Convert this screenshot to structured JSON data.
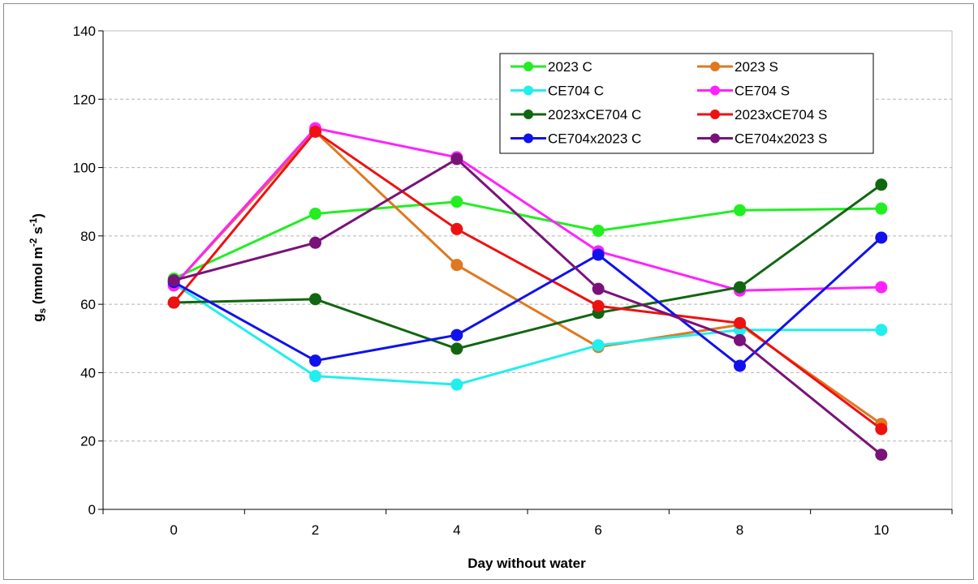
{
  "chart_data": {
    "type": "line",
    "title": "",
    "xlabel": "Day without water",
    "ylabel_main": "g",
    "ylabel_sub": "s",
    "ylabel_rest": " (mmol m",
    "ylabel_sup1": "-2",
    "ylabel_mid": " s",
    "ylabel_sup2": "-1",
    "ylabel_close": ")",
    "x": [
      0,
      2,
      4,
      6,
      8,
      10
    ],
    "x_tick_labels": [
      "0",
      "2",
      "4",
      "6",
      "8",
      "10"
    ],
    "xlim": [
      -1,
      11
    ],
    "ylim": [
      0,
      140
    ],
    "y_ticks": [
      0,
      20,
      40,
      60,
      80,
      100,
      120,
      140
    ],
    "y_tick_labels": [
      "0",
      "20",
      "40",
      "60",
      "80",
      "100",
      "120",
      "140"
    ],
    "grid": "horizontal dashed",
    "legend_position": "top-right",
    "series": [
      {
        "name": "2023 C",
        "color": "#22ee22",
        "values": [
          67.5,
          86.5,
          90,
          81.5,
          87.5,
          88
        ]
      },
      {
        "name": "2023 S",
        "color": "#e07820",
        "values": [
          65.5,
          110.5,
          71.5,
          47.5,
          54,
          25
        ]
      },
      {
        "name": "CE704 C",
        "color": "#22eeee",
        "values": [
          66,
          39,
          36.5,
          48,
          52.5,
          52.5
        ]
      },
      {
        "name": "CE704 S",
        "color": "#ff22ff",
        "values": [
          65.5,
          111.5,
          103,
          75.5,
          64,
          65
        ]
      },
      {
        "name": "2023xCE704 C",
        "color": "#116611",
        "values": [
          60.5,
          61.5,
          47,
          57.5,
          65,
          95
        ]
      },
      {
        "name": "2023xCE704 S",
        "color": "#ee1111",
        "values": [
          60.5,
          110.5,
          82,
          59.5,
          54.5,
          23.5
        ]
      },
      {
        "name": "CE704x2023 C",
        "color": "#1111ee",
        "values": [
          66.5,
          43.5,
          51,
          74.5,
          42,
          79.5
        ]
      },
      {
        "name": "CE704x2023 S",
        "color": "#7a127a",
        "values": [
          67,
          78,
          102.5,
          64.5,
          49.5,
          16
        ]
      }
    ]
  }
}
